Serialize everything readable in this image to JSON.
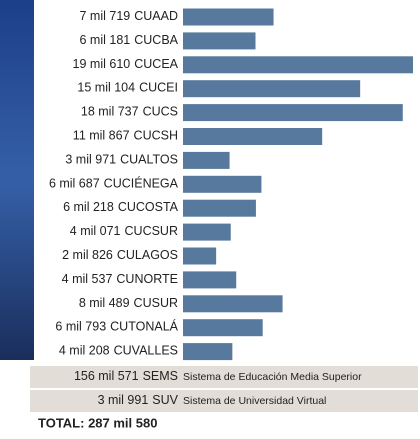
{
  "chart_data": {
    "type": "bar",
    "orientation": "horizontal",
    "color": "#56799d",
    "categories": [
      "CUAAD",
      "CUCBA",
      "CUCEA",
      "CUCEI",
      "CUCS",
      "CUCSH",
      "CUALTOS",
      "CUCIÉNEGA",
      "CUCOSTA",
      "CUCSUR",
      "CULAGOS",
      "CUNORTE",
      "CUSUR",
      "CUTONALÁ",
      "CUVALLES"
    ],
    "values": [
      7719,
      6181,
      19610,
      15104,
      18737,
      11867,
      3971,
      6687,
      6218,
      4071,
      2826,
      4537,
      8489,
      6793,
      4208
    ],
    "value_labels": [
      "7 mil 719",
      "6 mil 181",
      "19 mil 610",
      "15 mil 104",
      "18 mil 737",
      "11 mil 867",
      "3 mil 971",
      "6 mil 687",
      "6 mil 218",
      "4 mil 071",
      "2 mil 826",
      "4 mil 537",
      "8 mil 489",
      "6 mil 793",
      "4 mil 208"
    ],
    "extra_rows": [
      {
        "value_label": "156 mil 571",
        "name": "SEMS",
        "description": "Sistema de Educación Media Superior"
      },
      {
        "value_label": "3 mil 991",
        "name": "SUV",
        "description": "Sistema de Universidad Virtual"
      }
    ],
    "total": "TOTAL: 287 mil 580"
  }
}
